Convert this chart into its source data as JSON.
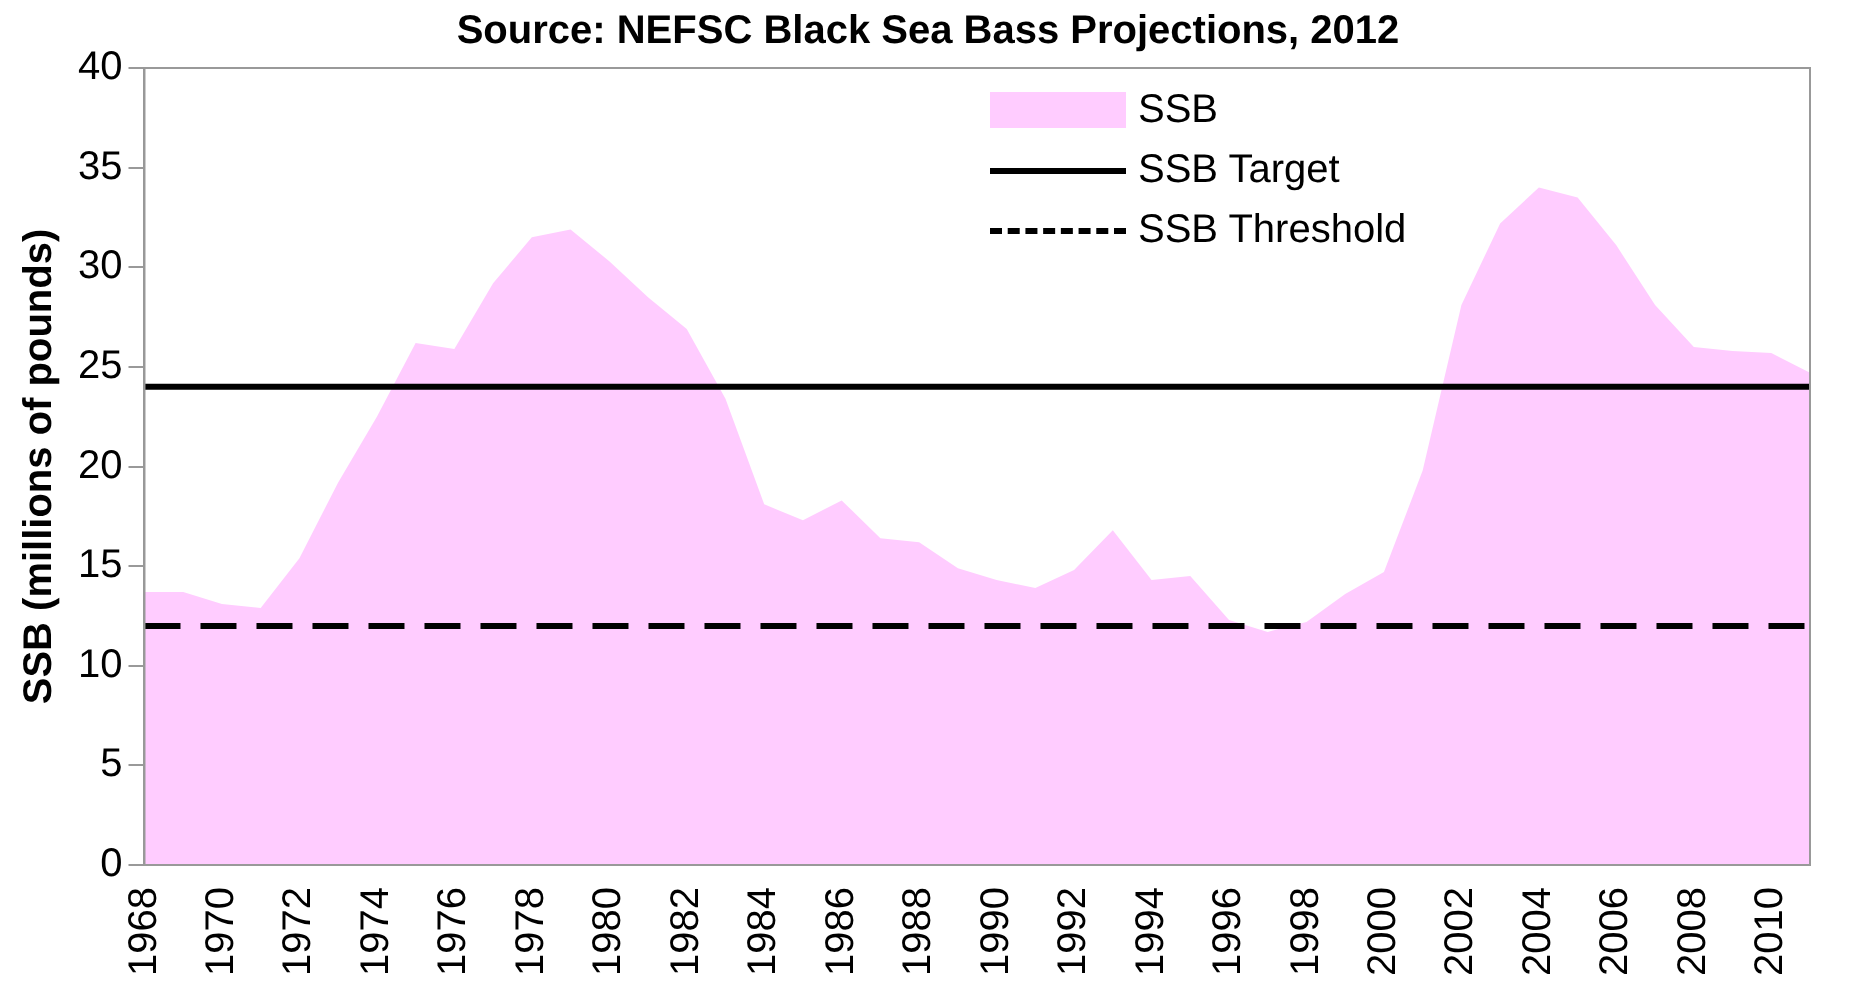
{
  "chart_data": {
    "type": "area",
    "title": "Source: NEFSC Black Sea Bass Projections, 2012",
    "ylabel": "SSB (millions of pounds)",
    "categories": [
      "1968",
      null,
      "1970",
      null,
      "1972",
      null,
      "1974",
      null,
      "1976",
      null,
      "1978",
      null,
      "1980",
      null,
      "1982",
      null,
      "1984",
      null,
      "1986",
      null,
      "1988",
      null,
      "1990",
      null,
      "1992",
      null,
      "1994",
      null,
      "1996",
      null,
      "1998",
      null,
      "2000",
      null,
      "2002",
      null,
      "2004",
      null,
      "2006",
      null,
      "2008",
      null,
      "2010",
      null
    ],
    "series": [
      {
        "name": "SSB",
        "color": "#ffccff",
        "values": [
          13.7,
          13.7,
          13.1,
          12.9,
          15.4,
          19.2,
          22.5,
          26.2,
          25.9,
          29.2,
          31.5,
          31.9,
          30.3,
          28.5,
          26.9,
          23.4,
          18.1,
          17.3,
          18.3,
          16.4,
          16.2,
          14.9,
          14.3,
          13.9,
          14.8,
          16.8,
          14.3,
          14.5,
          12.3,
          11.7,
          12.2,
          13.6,
          14.7,
          19.8,
          28.1,
          32.2,
          34.0,
          33.5,
          31.1,
          28.1,
          26.0,
          25.8,
          25.7,
          24.7
        ]
      }
    ],
    "ref_lines": [
      {
        "axis": "y",
        "value": 24,
        "label": "SSB Target",
        "color": "#000000",
        "line_style": "solid"
      },
      {
        "axis": "y",
        "value": 12,
        "label": "SSB Threshold",
        "color": "#000000",
        "line_style": "dashed"
      }
    ],
    "ylim": [
      0,
      40
    ],
    "yticks": [
      0,
      5,
      10,
      15,
      20,
      25,
      30,
      35,
      40
    ],
    "grid": false,
    "legend": "top right"
  }
}
